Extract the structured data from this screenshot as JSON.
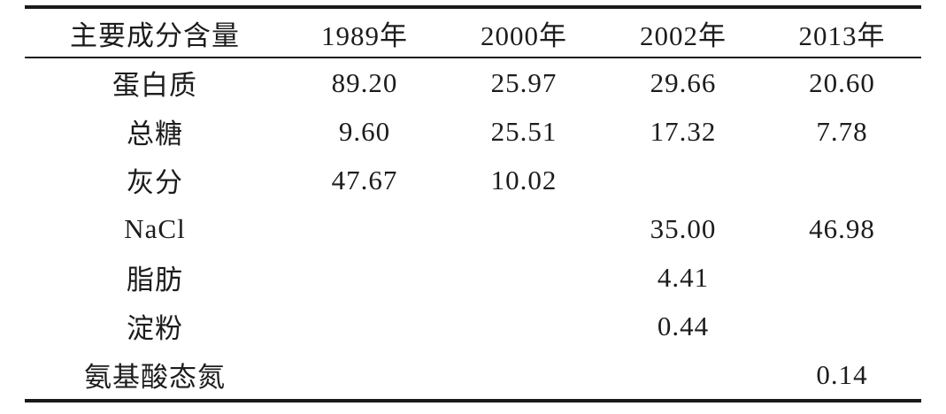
{
  "table": {
    "title": "主要成分含量",
    "columns": [
      "主要成分含量",
      "1989年",
      "2000年",
      "2002年",
      "2013年"
    ],
    "rows": [
      {
        "cells": [
          "蛋白质",
          "89.20",
          "25.97",
          "29.66",
          "20.60"
        ]
      },
      {
        "cells": [
          "总糖",
          "9.60",
          "25.51",
          "17.32",
          "7.78"
        ]
      },
      {
        "cells": [
          "灰分",
          "47.67",
          "10.02",
          "",
          ""
        ]
      },
      {
        "cells": [
          "NaCl",
          "",
          "",
          "35.00",
          "46.98"
        ]
      },
      {
        "cells": [
          "脂肪",
          "",
          "",
          "4.41",
          ""
        ]
      },
      {
        "cells": [
          "淀粉",
          "",
          "",
          "0.44",
          ""
        ]
      },
      {
        "cells": [
          "氨基酸态氮",
          "",
          "",
          "",
          "0.14"
        ]
      }
    ],
    "colors": {
      "text": "#1c1c1c",
      "rule": "#1a1a1a",
      "background": "#ffffff"
    }
  },
  "chart_data": {
    "type": "table",
    "title": "主要成分含量",
    "categories": [
      "1989年",
      "2000年",
      "2002年",
      "2013年"
    ],
    "series": [
      {
        "name": "蛋白质",
        "values": [
          89.2,
          25.97,
          29.66,
          20.6
        ]
      },
      {
        "name": "总糖",
        "values": [
          9.6,
          25.51,
          17.32,
          7.78
        ]
      },
      {
        "name": "灰分",
        "values": [
          47.67,
          10.02,
          null,
          null
        ]
      },
      {
        "name": "NaCl",
        "values": [
          null,
          null,
          35.0,
          46.98
        ]
      },
      {
        "name": "脂肪",
        "values": [
          null,
          null,
          4.41,
          null
        ]
      },
      {
        "name": "淀粉",
        "values": [
          null,
          null,
          0.44,
          null
        ]
      },
      {
        "name": "氨基酸态氮",
        "values": [
          null,
          null,
          null,
          0.14
        ]
      }
    ]
  }
}
